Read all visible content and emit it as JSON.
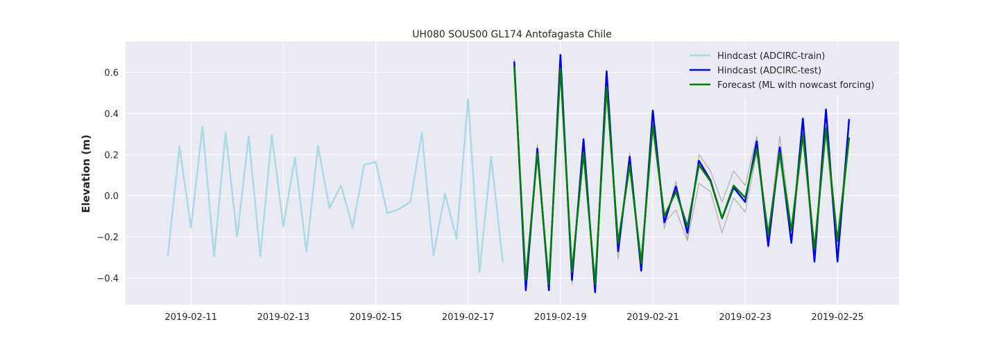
{
  "chart_data": {
    "type": "line",
    "title": "UH080 SOUS00 GL174 Antofagasta Chile",
    "xlabel": "",
    "ylabel": "Elevation (m)",
    "x_type": "date",
    "xlim": [
      "2019-02-09T14:00",
      "2019-02-26T08:00"
    ],
    "ylim": [
      -0.53,
      0.75
    ],
    "x_ticks": [
      "2019-02-11",
      "2019-02-13",
      "2019-02-15",
      "2019-02-17",
      "2019-02-19",
      "2019-02-21",
      "2019-02-23",
      "2019-02-25"
    ],
    "y_ticks": [
      -0.4,
      -0.2,
      0.0,
      0.2,
      0.4,
      0.6
    ],
    "y_tick_labels": [
      "−0.4",
      "−0.2",
      "0.0",
      "0.2",
      "0.4",
      "0.6"
    ],
    "grid": true,
    "legend_position": "top-right",
    "colors": {
      "plot_background": "#eaeaf2",
      "grid": "#ffffff",
      "ensemble": "#a0a0a0"
    },
    "series": [
      {
        "name": "Hindcast (ADCIRC-train)",
        "color": "#add8e6",
        "width": 2.5,
        "x": [
          "2019-02-10T12:00",
          "2019-02-10T18:00",
          "2019-02-11T00:00",
          "2019-02-11T06:00",
          "2019-02-11T12:00",
          "2019-02-11T18:00",
          "2019-02-12T00:00",
          "2019-02-12T06:00",
          "2019-02-12T12:00",
          "2019-02-12T18:00",
          "2019-02-13T00:00",
          "2019-02-13T06:00",
          "2019-02-13T12:00",
          "2019-02-13T18:00",
          "2019-02-14T00:00",
          "2019-02-14T06:00",
          "2019-02-14T12:00",
          "2019-02-14T18:00",
          "2019-02-15T00:00",
          "2019-02-15T06:00",
          "2019-02-15T12:00",
          "2019-02-15T18:00",
          "2019-02-16T00:00",
          "2019-02-16T06:00",
          "2019-02-16T12:00",
          "2019-02-16T18:00",
          "2019-02-17T00:00",
          "2019-02-17T06:00",
          "2019-02-17T12:00",
          "2019-02-17T18:00"
        ],
        "y": [
          -0.29,
          0.24,
          -0.155,
          0.335,
          -0.295,
          0.305,
          -0.2,
          0.29,
          -0.295,
          0.295,
          -0.15,
          0.185,
          -0.27,
          0.24,
          -0.06,
          0.05,
          -0.155,
          0.15,
          0.165,
          -0.085,
          -0.065,
          -0.03,
          0.305,
          -0.29,
          0.01,
          -0.21,
          0.47,
          -0.37,
          0.19,
          -0.32
        ]
      },
      {
        "name": "Hindcast (ADCIRC-test)",
        "color": "#0000ee",
        "width": 2.5,
        "x": [
          "2019-02-18T00:00",
          "2019-02-18T06:00",
          "2019-02-18T12:00",
          "2019-02-18T18:00",
          "2019-02-19T00:00",
          "2019-02-19T06:00",
          "2019-02-19T12:00",
          "2019-02-19T18:00",
          "2019-02-20T00:00",
          "2019-02-20T06:00",
          "2019-02-20T12:00",
          "2019-02-20T18:00",
          "2019-02-21T00:00",
          "2019-02-21T06:00",
          "2019-02-21T12:00",
          "2019-02-21T18:00",
          "2019-02-22T00:00",
          "2019-02-22T06:00",
          "2019-02-22T12:00",
          "2019-02-22T18:00",
          "2019-02-23T00:00",
          "2019-02-23T06:00",
          "2019-02-23T12:00",
          "2019-02-23T18:00",
          "2019-02-24T00:00",
          "2019-02-24T06:00",
          "2019-02-24T12:00",
          "2019-02-24T18:00",
          "2019-02-25T00:00",
          "2019-02-25T06:00"
        ],
        "y": [
          0.65,
          -0.46,
          0.23,
          -0.46,
          0.685,
          -0.41,
          0.275,
          -0.47,
          0.605,
          -0.27,
          0.19,
          -0.365,
          0.415,
          -0.13,
          0.045,
          -0.18,
          0.17,
          0.075,
          -0.11,
          0.04,
          -0.03,
          0.265,
          -0.245,
          0.235,
          -0.23,
          0.375,
          -0.32,
          0.42,
          -0.32,
          0.37
        ]
      },
      {
        "name": "Forecast (ML with nowcast forcing)",
        "color": "#008000",
        "width": 2.5,
        "x": [
          "2019-02-18T00:00",
          "2019-02-18T06:00",
          "2019-02-18T12:00",
          "2019-02-18T18:00",
          "2019-02-19T00:00",
          "2019-02-19T06:00",
          "2019-02-19T12:00",
          "2019-02-19T18:00",
          "2019-02-20T00:00",
          "2019-02-20T06:00",
          "2019-02-20T12:00",
          "2019-02-20T18:00",
          "2019-02-21T00:00",
          "2019-02-21T06:00",
          "2019-02-21T12:00",
          "2019-02-21T18:00",
          "2019-02-22T00:00",
          "2019-02-22T06:00",
          "2019-02-22T12:00",
          "2019-02-22T18:00",
          "2019-02-23T00:00",
          "2019-02-23T06:00",
          "2019-02-23T12:00",
          "2019-02-23T18:00",
          "2019-02-24T00:00",
          "2019-02-24T06:00",
          "2019-02-24T12:00",
          "2019-02-24T18:00",
          "2019-02-25T00:00",
          "2019-02-25T06:00"
        ],
        "y": [
          0.625,
          -0.41,
          0.205,
          -0.43,
          0.62,
          -0.37,
          0.21,
          -0.43,
          0.53,
          -0.23,
          0.15,
          -0.33,
          0.345,
          -0.1,
          0.02,
          -0.15,
          0.15,
          0.07,
          -0.11,
          0.05,
          -0.01,
          0.23,
          -0.19,
          0.21,
          -0.17,
          0.3,
          -0.26,
          0.33,
          -0.22,
          0.28
        ]
      }
    ],
    "ensemble": [
      {
        "x": [
          "2019-02-18T00:00",
          "2019-02-18T06:00",
          "2019-02-18T12:00",
          "2019-02-18T18:00",
          "2019-02-19T00:00",
          "2019-02-19T06:00",
          "2019-02-19T12:00",
          "2019-02-19T18:00",
          "2019-02-20T00:00",
          "2019-02-20T06:00",
          "2019-02-20T12:00",
          "2019-02-20T18:00",
          "2019-02-21T00:00",
          "2019-02-21T06:00",
          "2019-02-21T12:00",
          "2019-02-21T18:00",
          "2019-02-22T00:00",
          "2019-02-22T06:00",
          "2019-02-22T12:00",
          "2019-02-22T18:00",
          "2019-02-23T00:00",
          "2019-02-23T06:00",
          "2019-02-23T12:00",
          "2019-02-23T18:00",
          "2019-02-24T00:00",
          "2019-02-24T06:00",
          "2019-02-24T12:00",
          "2019-02-24T18:00",
          "2019-02-25T00:00",
          "2019-02-25T06:00"
        ],
        "y": [
          0.665,
          -0.4,
          0.25,
          -0.42,
          0.655,
          -0.43,
          0.24,
          -0.45,
          0.57,
          -0.31,
          0.21,
          -0.34,
          0.37,
          -0.16,
          0.07,
          -0.21,
          0.2,
          0.12,
          -0.03,
          0.12,
          0.05,
          0.29,
          -0.2,
          0.29,
          -0.16,
          0.33,
          -0.25,
          0.38,
          -0.25,
          0.33
        ]
      },
      {
        "x": [
          "2019-02-18T00:00",
          "2019-02-18T06:00",
          "2019-02-18T12:00",
          "2019-02-18T18:00",
          "2019-02-19T00:00",
          "2019-02-19T06:00",
          "2019-02-19T12:00",
          "2019-02-19T18:00",
          "2019-02-20T00:00",
          "2019-02-20T06:00",
          "2019-02-20T12:00",
          "2019-02-20T18:00",
          "2019-02-21T00:00",
          "2019-02-21T06:00",
          "2019-02-21T12:00",
          "2019-02-21T18:00",
          "2019-02-22T00:00",
          "2019-02-22T06:00",
          "2019-02-22T12:00",
          "2019-02-22T18:00",
          "2019-02-23T00:00",
          "2019-02-23T06:00",
          "2019-02-23T12:00",
          "2019-02-23T18:00",
          "2019-02-24T00:00",
          "2019-02-24T06:00",
          "2019-02-24T12:00",
          "2019-02-24T18:00",
          "2019-02-25T00:00",
          "2019-02-25T06:00"
        ],
        "y": [
          0.6,
          -0.44,
          0.19,
          -0.41,
          0.61,
          -0.39,
          0.19,
          -0.44,
          0.5,
          -0.25,
          0.14,
          -0.3,
          0.32,
          -0.13,
          -0.07,
          -0.22,
          0.06,
          0.02,
          -0.18,
          -0.01,
          -0.08,
          0.21,
          -0.22,
          0.18,
          -0.22,
          0.27,
          -0.3,
          0.3,
          -0.3,
          0.26
        ]
      }
    ]
  }
}
